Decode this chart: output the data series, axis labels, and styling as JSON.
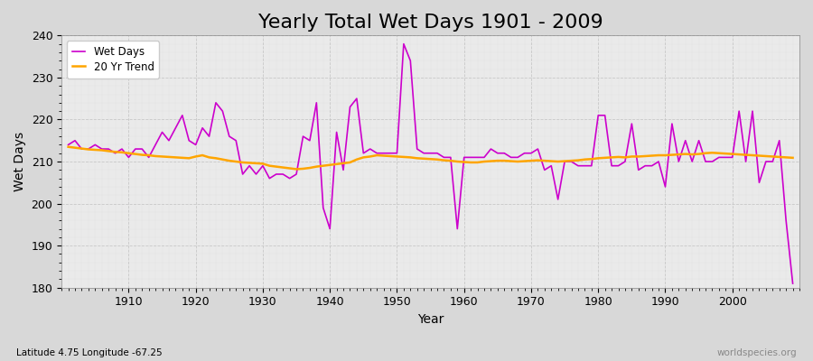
{
  "title": "Yearly Total Wet Days 1901 - 2009",
  "xlabel": "Year",
  "ylabel": "Wet Days",
  "subtitle": "Latitude 4.75 Longitude -67.25",
  "watermark": "worldspecies.org",
  "years": [
    1901,
    1902,
    1903,
    1904,
    1905,
    1906,
    1907,
    1908,
    1909,
    1910,
    1911,
    1912,
    1913,
    1914,
    1915,
    1916,
    1917,
    1918,
    1919,
    1920,
    1921,
    1922,
    1923,
    1924,
    1925,
    1926,
    1927,
    1928,
    1929,
    1930,
    1931,
    1932,
    1933,
    1934,
    1935,
    1936,
    1937,
    1938,
    1939,
    1940,
    1941,
    1942,
    1943,
    1944,
    1945,
    1946,
    1947,
    1948,
    1949,
    1950,
    1951,
    1952,
    1953,
    1954,
    1955,
    1956,
    1957,
    1958,
    1959,
    1960,
    1961,
    1962,
    1963,
    1964,
    1965,
    1966,
    1967,
    1968,
    1969,
    1970,
    1971,
    1972,
    1973,
    1974,
    1975,
    1976,
    1977,
    1978,
    1979,
    1980,
    1981,
    1982,
    1983,
    1984,
    1985,
    1986,
    1987,
    1988,
    1989,
    1990,
    1991,
    1992,
    1993,
    1994,
    1995,
    1996,
    1997,
    1998,
    1999,
    2000,
    2001,
    2002,
    2003,
    2004,
    2005,
    2006,
    2007,
    2008,
    2009
  ],
  "wet_days": [
    214,
    215,
    213,
    213,
    214,
    213,
    213,
    212,
    213,
    211,
    213,
    213,
    211,
    214,
    217,
    215,
    218,
    221,
    215,
    214,
    218,
    216,
    224,
    222,
    216,
    215,
    207,
    209,
    207,
    209,
    206,
    207,
    207,
    206,
    207,
    216,
    215,
    224,
    199,
    194,
    217,
    208,
    223,
    225,
    212,
    213,
    212,
    212,
    212,
    212,
    238,
    234,
    213,
    212,
    212,
    212,
    211,
    211,
    194,
    211,
    211,
    211,
    211,
    213,
    212,
    212,
    211,
    211,
    212,
    212,
    213,
    208,
    209,
    201,
    210,
    210,
    209,
    209,
    209,
    221,
    221,
    209,
    209,
    210,
    219,
    208,
    209,
    209,
    210,
    204,
    219,
    210,
    215,
    210,
    215,
    210,
    210,
    211,
    211,
    211,
    222,
    210,
    222,
    205,
    210,
    210,
    215,
    196,
    181
  ],
  "trend": [
    213.5,
    213.3,
    213.1,
    212.9,
    212.8,
    212.7,
    212.5,
    212.3,
    212.2,
    212.0,
    211.8,
    211.6,
    211.5,
    211.3,
    211.2,
    211.1,
    211.0,
    210.9,
    210.8,
    211.2,
    211.5,
    211.0,
    210.8,
    210.5,
    210.2,
    210.0,
    209.8,
    209.7,
    209.6,
    209.5,
    209.0,
    208.8,
    208.6,
    208.4,
    208.2,
    208.3,
    208.5,
    208.8,
    209.0,
    209.2,
    209.4,
    209.6,
    209.8,
    210.5,
    211.0,
    211.2,
    211.5,
    211.4,
    211.3,
    211.2,
    211.1,
    211.0,
    210.8,
    210.7,
    210.6,
    210.5,
    210.3,
    210.2,
    210.0,
    209.9,
    209.8,
    209.8,
    210.0,
    210.1,
    210.2,
    210.2,
    210.1,
    210.0,
    210.1,
    210.2,
    210.3,
    210.2,
    210.1,
    210.0,
    210.1,
    210.2,
    210.3,
    210.5,
    210.6,
    210.8,
    210.9,
    211.0,
    211.1,
    211.0,
    211.2,
    211.2,
    211.3,
    211.4,
    211.5,
    211.5,
    211.6,
    211.7,
    211.8,
    211.7,
    211.8,
    212.0,
    212.1,
    212.0,
    211.9,
    211.8,
    211.7,
    211.6,
    211.5,
    211.4,
    211.3,
    211.2,
    211.1,
    211.0,
    210.9
  ],
  "wet_days_color": "#cc00cc",
  "trend_color": "#FFA500",
  "fig_bg_color": "#d8d8d8",
  "plot_bg_color": "#eaeaea",
  "grid_color": "#c0c0c0",
  "ylim": [
    180,
    240
  ],
  "xlim_min": 1901,
  "xlim_max": 2009,
  "title_fontsize": 16,
  "label_fontsize": 10,
  "tick_fontsize": 9
}
